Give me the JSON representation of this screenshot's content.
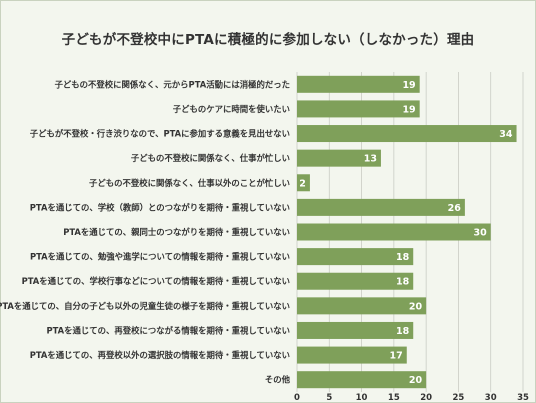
{
  "chart_data": {
    "type": "bar",
    "orientation": "horizontal",
    "title": "子どもが不登校中にPTAに積極的に参加しない（しなかった）理由",
    "categories": [
      "子どもの不登校に関係なく、元からPTA活動には消極的だった",
      "子どものケアに時間を使いたい",
      "子どもが不登校・行き渋りなので、PTAに参加する意義を見出せない",
      "子どもの不登校に関係なく、仕事が忙しい",
      "子どもの不登校に関係なく、仕事以外のことが忙しい",
      "PTAを通じての、学校（教師）とのつながりを期待・重視していない",
      "PTAを通じての、親同士のつながりを期待・重視していない",
      "PTAを通じての、勉強や進学についての情報を期待・重視していない",
      "PTAを通じての、学校行事などについての情報を期待・重視していない",
      "PTAを通じての、自分の子ども以外の児童生徒の様子を期待・重視していない",
      "PTAを通じての、再登校につながる情報を期待・重視していない",
      "PTAを通じての、再登校以外の選択肢の情報を期待・重視していない",
      "その他"
    ],
    "values": [
      19,
      19,
      34,
      13,
      2,
      26,
      30,
      18,
      18,
      20,
      18,
      17,
      20
    ],
    "xlim": [
      0,
      35
    ],
    "xticks": [
      0,
      5,
      10,
      15,
      20,
      25,
      30,
      35
    ],
    "grid": true,
    "bar_color": "#7fa05a",
    "grid_color": "#c9ccc4"
  }
}
